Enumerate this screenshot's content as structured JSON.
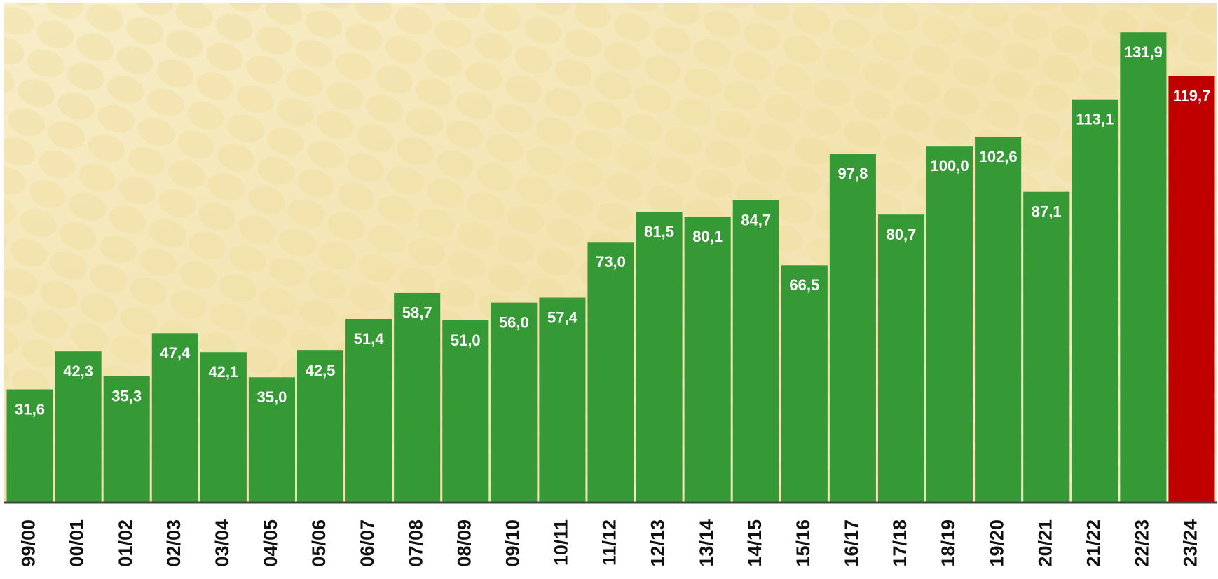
{
  "chart_data": {
    "type": "bar",
    "categories": [
      "99/00",
      "00/01",
      "01/02",
      "02/03",
      "03/04",
      "04/05",
      "05/06",
      "06/07",
      "07/08",
      "08/09",
      "09/10",
      "10/11",
      "11/12",
      "12/13",
      "13/14",
      "14/15",
      "15/16",
      "16/17",
      "17/18",
      "18/19",
      "19/20",
      "20/21",
      "21/22",
      "22/23",
      "23/24"
    ],
    "values": [
      31.6,
      42.3,
      35.3,
      47.4,
      42.1,
      35.0,
      42.5,
      51.4,
      58.7,
      51.0,
      56.0,
      57.4,
      73.0,
      81.5,
      80.1,
      84.7,
      66.5,
      97.8,
      80.7,
      100.0,
      102.6,
      87.1,
      113.1,
      131.9,
      119.7
    ],
    "value_labels": [
      "31,6",
      "42,3",
      "35,3",
      "47,4",
      "42,1",
      "35,0",
      "42,5",
      "51,4",
      "58,7",
      "51,0",
      "56,0",
      "57,4",
      "73,0",
      "81,5",
      "80,1",
      "84,7",
      "66,5",
      "97,8",
      "80,7",
      "100,0",
      "102,6",
      "87,1",
      "113,1",
      "131,9",
      "119,7"
    ],
    "colors": [
      "#359a35",
      "#359a35",
      "#359a35",
      "#359a35",
      "#359a35",
      "#359a35",
      "#359a35",
      "#359a35",
      "#359a35",
      "#359a35",
      "#359a35",
      "#359a35",
      "#359a35",
      "#359a35",
      "#359a35",
      "#359a35",
      "#359a35",
      "#359a35",
      "#359a35",
      "#359a35",
      "#359a35",
      "#359a35",
      "#359a35",
      "#359a35",
      "#c00000"
    ],
    "ylim": [
      0,
      141
    ]
  }
}
